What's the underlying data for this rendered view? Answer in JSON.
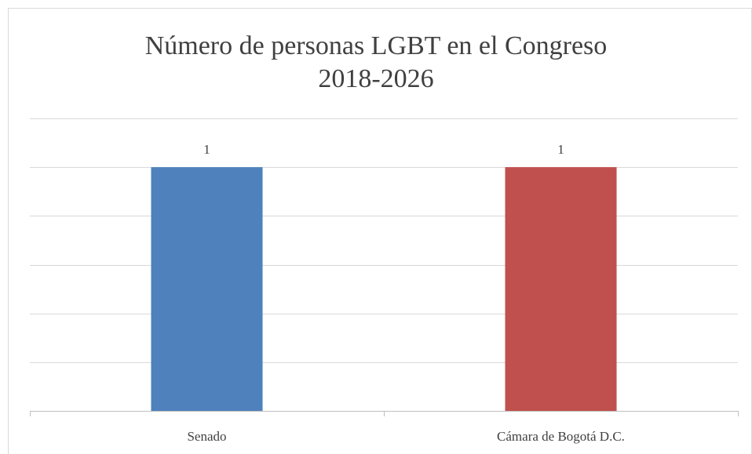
{
  "chart_data": {
    "type": "bar",
    "title": "Número de personas LGBT en el Congreso\n2018-2026",
    "categories": [
      "Senado",
      "Cámara de Bogotá D.C."
    ],
    "values": [
      1,
      1
    ],
    "colors": [
      "#4f81bd",
      "#c0504d"
    ],
    "ylim": [
      0,
      1.2
    ],
    "yticks": [
      0,
      0.2,
      0.4,
      0.6,
      0.8,
      1.0,
      1.2
    ],
    "grid": true
  }
}
